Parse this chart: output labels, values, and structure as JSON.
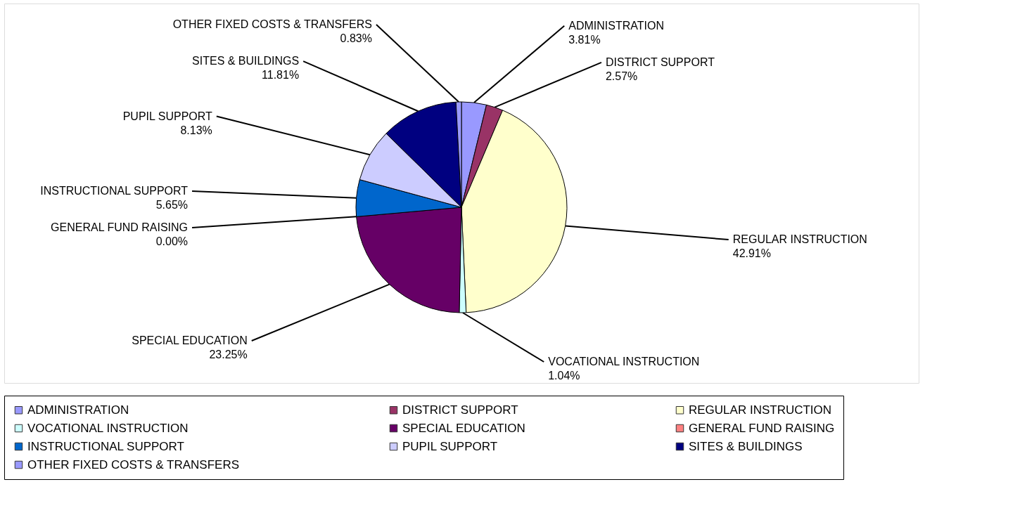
{
  "chart_data": {
    "type": "pie",
    "categories": [
      "ADMINISTRATION",
      "DISTRICT SUPPORT",
      "REGULAR INSTRUCTION",
      "VOCATIONAL INSTRUCTION",
      "SPECIAL EDUCATION",
      "GENERAL FUND RAISING",
      "INSTRUCTIONAL SUPPORT",
      "PUPIL SUPPORT",
      "SITES & BUILDINGS",
      "OTHER FIXED COSTS & TRANSFERS"
    ],
    "values": [
      3.81,
      2.57,
      42.91,
      1.04,
      23.25,
      0.0,
      5.65,
      8.13,
      11.81,
      0.83
    ],
    "value_labels": [
      "3.81%",
      "2.57%",
      "42.91%",
      "1.04%",
      "23.25%",
      "0.00%",
      "5.65%",
      "8.13%",
      "11.81%",
      "0.83%"
    ],
    "colors": [
      "#9999ff",
      "#993366",
      "#ffffcc",
      "#ccffff",
      "#660066",
      "#ff8080",
      "#0066cc",
      "#ccccff",
      "#000080",
      "#9999ff"
    ],
    "legend": "bottom"
  }
}
